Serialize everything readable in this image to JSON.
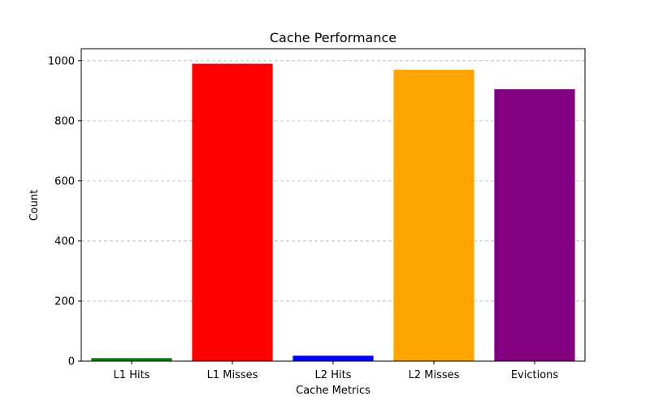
{
  "chart_data": {
    "type": "bar",
    "title": "Cache Performance",
    "xlabel": "Cache Metrics",
    "ylabel": "Count",
    "categories": [
      "L1 Hits",
      "L1 Misses",
      "L2 Hits",
      "L2 Misses",
      "Evictions"
    ],
    "values": [
      10,
      990,
      18,
      970,
      905
    ],
    "colors": [
      "#008000",
      "#ff0000",
      "#0000ff",
      "#ffa500",
      "#800080"
    ],
    "ylim": [
      0,
      1040
    ],
    "yticks": [
      0,
      200,
      400,
      600,
      800,
      1000
    ],
    "grid": {
      "axis": "y",
      "style": "dashed",
      "color": "#b0b0b0"
    }
  }
}
